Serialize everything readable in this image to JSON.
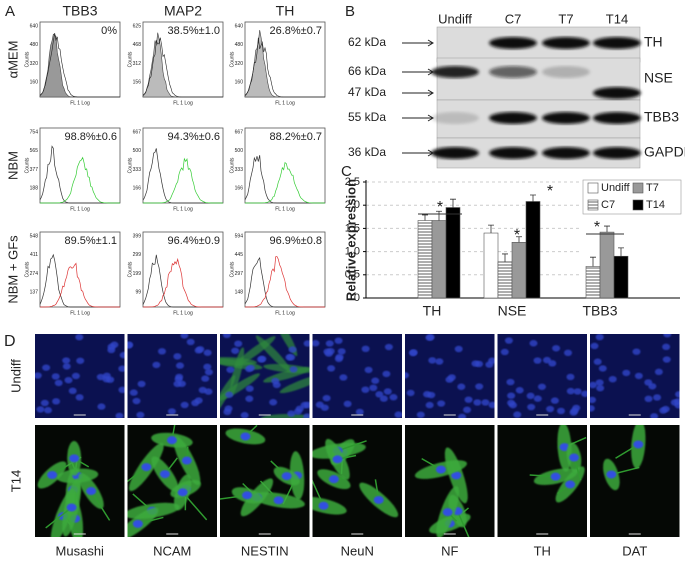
{
  "panel_a": {
    "label": "A",
    "columns": [
      "TBB3",
      "MAP2",
      "TH"
    ],
    "x_label": "FL 1 Log",
    "y_label": "Counts",
    "rows": [
      {
        "name": "αMEM",
        "cells": [
          {
            "percent": "0%",
            "yticks": [
              "640",
              "480",
              "320",
              "160"
            ]
          },
          {
            "percent": "38.5%±1.0",
            "yticks": [
              "625",
              "468",
              "312",
              "156"
            ]
          },
          {
            "percent": "26.8%±0.7",
            "yticks": [
              "640",
              "480",
              "320",
              "160"
            ]
          }
        ]
      },
      {
        "name": "NBM",
        "cells": [
          {
            "percent": "98.8%±0.6",
            "yticks": [
              "754",
              "565",
              "377",
              "188"
            ]
          },
          {
            "percent": "94.3%±0.6",
            "yticks": [
              "667",
              "500",
              "333",
              "166"
            ]
          },
          {
            "percent": "88.2%±0.7",
            "yticks": [
              "667",
              "500",
              "333",
              "166"
            ]
          }
        ]
      },
      {
        "name": "NBM + GFs",
        "cells": [
          {
            "percent": "89.5%±1.1",
            "yticks": [
              "548",
              "411",
              "274",
              "137"
            ]
          },
          {
            "percent": "96.4%±0.9",
            "yticks": [
              "399",
              "299",
              "199",
              "99"
            ]
          },
          {
            "percent": "96.9%±0.8",
            "yticks": [
              "594",
              "445",
              "297",
              "148"
            ]
          }
        ]
      }
    ]
  },
  "panel_b": {
    "label": "B",
    "lanes": [
      "Undiff",
      "C7",
      "T7",
      "T14"
    ],
    "markers": [
      "62 kDa",
      "66 kDa",
      "47 kDa",
      "55 kDa",
      "36 kDa"
    ],
    "proteins": [
      "TH",
      "NSE",
      "TBB3",
      "GAPDH"
    ]
  },
  "chart_data": {
    "type": "bar",
    "label": "C",
    "y_label": "Relative expression",
    "categories": [
      "TH",
      "NSE",
      "TBB3"
    ],
    "series": [
      {
        "name": "Undiff",
        "color": "#ffffff",
        "values": [
          null,
          1.4,
          null
        ],
        "errors": [
          null,
          0.17,
          null
        ]
      },
      {
        "name": "C7",
        "color": "#ffffff",
        "hatch": true,
        "values": [
          1.67,
          0.78,
          0.68
        ],
        "errors": [
          0.12,
          0.17,
          0.2
        ]
      },
      {
        "name": "T7",
        "color": "#999999",
        "values": [
          1.67,
          1.2,
          1.42
        ],
        "errors": [
          0.2,
          0.12,
          0.13
        ]
      },
      {
        "name": "T14",
        "color": "#000000",
        "values": [
          1.95,
          2.08,
          0.9
        ],
        "errors": [
          0.18,
          0.14,
          0.18
        ]
      }
    ],
    "ylim": [
      0,
      2.5
    ],
    "yticks": [
      0,
      0.5,
      {
        "value": 1,
        "label": "1.0"
      },
      1.5,
      {
        "value": 2,
        "label": "2.0"
      },
      2.5
    ],
    "grid": true,
    "annotations": [
      "*",
      "*",
      "*",
      "*"
    ]
  },
  "panel_d": {
    "label": "D",
    "rows": [
      "Undiff",
      "T14"
    ],
    "columns": [
      "Musashi",
      "NCAM",
      "NESTIN",
      "NeuN",
      "NF",
      "TH",
      "DAT"
    ]
  }
}
